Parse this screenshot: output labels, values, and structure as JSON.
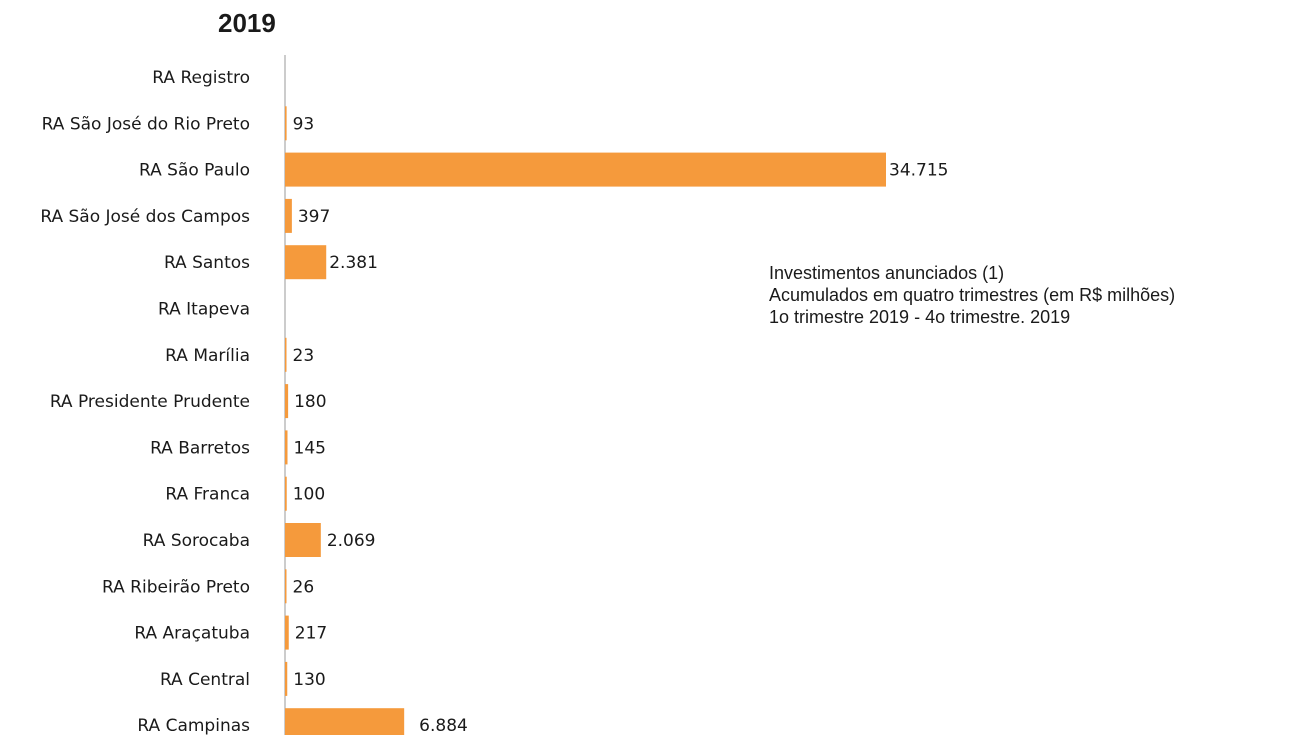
{
  "chart_data": {
    "type": "bar",
    "orientation": "horizontal",
    "title": "2019",
    "annotation": [
      "Investimentos anunciados (1)",
      "Acumulados em quatro trimestres (em R$ milhões)",
      "1o  trimestre 2019 - 4o  trimestre. 2019"
    ],
    "categories": [
      "RA Registro",
      "RA São José do Rio Preto",
      "RA São Paulo",
      "RA São José dos Campos",
      "RA Santos",
      "RA Itapeva",
      "RA Marília",
      "RA Presidente Prudente",
      "RA Barretos",
      "RA Franca",
      "RA Sorocaba",
      "RA Ribeirão Preto",
      "RA Araçatuba",
      "RA Central",
      "RA Campinas"
    ],
    "values": [
      null,
      93,
      34715,
      397,
      2381,
      null,
      23,
      180,
      145,
      100,
      2069,
      26,
      217,
      130,
      6884
    ],
    "value_labels": [
      "",
      "93",
      "34.715",
      "397",
      "2.381",
      "",
      "23",
      "180",
      "145",
      "100",
      "2.069",
      "26",
      "217",
      "130",
      "6.884"
    ],
    "xlim": [
      0,
      34715
    ],
    "grid": false,
    "colors": {
      "bar": "#F59A3C",
      "axis": "#9a9a9a",
      "text": "#1a1a1a"
    }
  }
}
